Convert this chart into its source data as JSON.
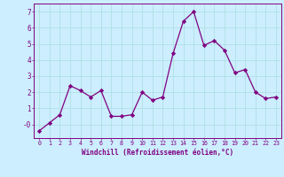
{
  "x": [
    0,
    1,
    2,
    3,
    4,
    5,
    6,
    7,
    8,
    9,
    10,
    11,
    12,
    13,
    14,
    15,
    16,
    17,
    18,
    19,
    20,
    21,
    22,
    23
  ],
  "y": [
    -0.4,
    0.1,
    0.6,
    2.4,
    2.1,
    1.7,
    2.1,
    0.5,
    0.5,
    0.6,
    2.0,
    1.5,
    1.7,
    4.4,
    6.4,
    7.0,
    4.9,
    5.2,
    4.6,
    3.2,
    3.4,
    2.0,
    1.6,
    1.7
  ],
  "line_color": "#800080",
  "marker": "D",
  "marker_size": 2.2,
  "bg_color": "#cceeff",
  "grid_color": "#aadddd",
  "xlabel": "Windchill (Refroidissement éolien,°C)",
  "xlim": [
    -0.5,
    23.5
  ],
  "ylim": [
    -0.85,
    7.5
  ],
  "yticks": [
    0,
    1,
    2,
    3,
    4,
    5,
    6,
    7
  ],
  "ytick_labels": [
    "-0",
    "1",
    "2",
    "3",
    "4",
    "5",
    "6",
    "7"
  ],
  "xticks": [
    0,
    1,
    2,
    3,
    4,
    5,
    6,
    7,
    8,
    9,
    10,
    11,
    12,
    13,
    14,
    15,
    16,
    17,
    18,
    19,
    20,
    21,
    22,
    23
  ]
}
